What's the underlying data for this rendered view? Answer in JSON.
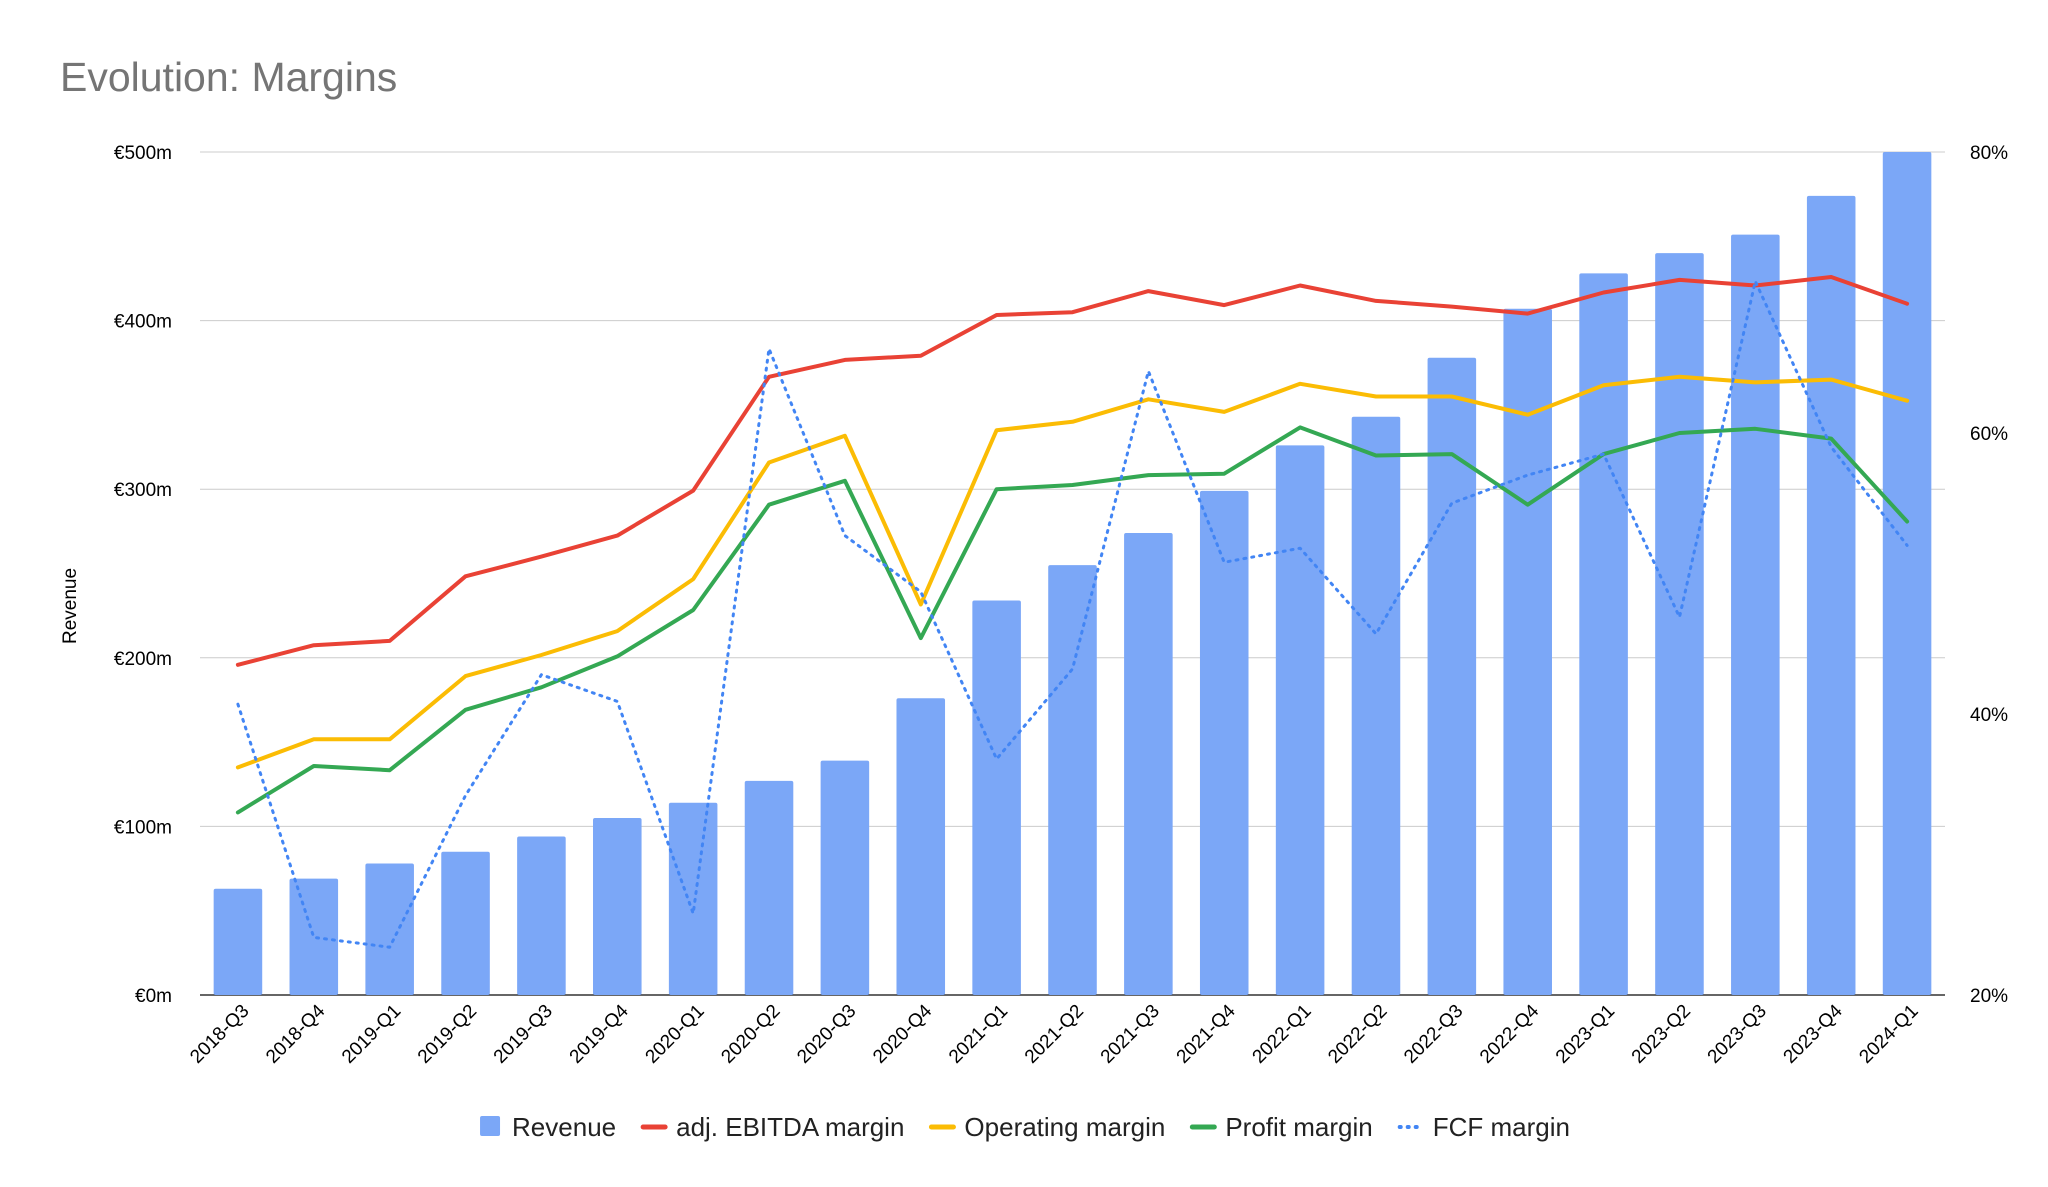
{
  "chart_data": {
    "type": "bar",
    "title": "Evolution: Margins",
    "ylabel": "Revenue",
    "y2label": "",
    "ylim": [
      0,
      500
    ],
    "y2lim": [
      20,
      80
    ],
    "y_ticks": [
      "€0m",
      "€100m",
      "€200m",
      "€300m",
      "€400m",
      "€500m"
    ],
    "y_tick_values": [
      0,
      100,
      200,
      300,
      400,
      500
    ],
    "y2_ticks": [
      "20%",
      "40%",
      "60%",
      "80%"
    ],
    "y2_tick_values": [
      20,
      40,
      60,
      80
    ],
    "grid": true,
    "legend_position": "bottom",
    "categories": [
      "2018-Q3",
      "2018-Q4",
      "2019-Q1",
      "2019-Q2",
      "2019-Q3",
      "2019-Q4",
      "2020-Q1",
      "2020-Q2",
      "2020-Q3",
      "2020-Q4",
      "2021-Q1",
      "2021-Q2",
      "2021-Q3",
      "2021-Q4",
      "2022-Q1",
      "2022-Q2",
      "2022-Q3",
      "2022-Q4",
      "2023-Q1",
      "2023-Q2",
      "2023-Q3",
      "2023-Q4",
      "2024-Q1"
    ],
    "series": [
      {
        "name": "Revenue",
        "kind": "bar",
        "axis": "left",
        "color": "#7BA7F7",
        "values": [
          63,
          69,
          78,
          85,
          94,
          105,
          114,
          127,
          139,
          176,
          234,
          255,
          274,
          299,
          326,
          343,
          378,
          407,
          428,
          440,
          451,
          474,
          500
        ]
      },
      {
        "name": "adj. EBITDA margin",
        "kind": "line",
        "axis": "right",
        "color": "#E94235",
        "dash": "solid",
        "values": [
          43.5,
          44.9,
          45.2,
          49.8,
          51.2,
          52.7,
          55.9,
          64.0,
          65.2,
          65.5,
          68.4,
          68.6,
          70.1,
          69.1,
          70.5,
          69.4,
          69.0,
          68.5,
          70.0,
          70.9,
          70.5,
          71.1,
          69.2
        ]
      },
      {
        "name": "Operating margin",
        "kind": "line",
        "axis": "right",
        "color": "#FBBC04",
        "dash": "solid",
        "values": [
          36.2,
          38.2,
          38.2,
          42.7,
          44.2,
          45.9,
          49.6,
          57.9,
          59.8,
          47.8,
          60.2,
          60.8,
          62.4,
          61.5,
          63.5,
          62.6,
          62.6,
          61.3,
          63.4,
          64.0,
          63.6,
          63.8,
          62.3
        ]
      },
      {
        "name": "Profit margin",
        "kind": "line",
        "axis": "right",
        "color": "#34A853",
        "dash": "solid",
        "values": [
          33.0,
          36.3,
          36.0,
          40.3,
          41.9,
          44.1,
          47.4,
          54.9,
          56.6,
          45.4,
          56.0,
          56.3,
          57.0,
          57.1,
          60.4,
          58.4,
          58.5,
          54.9,
          58.5,
          60.0,
          60.3,
          59.6,
          53.7
        ]
      },
      {
        "name": "FCF margin",
        "kind": "line",
        "axis": "right",
        "color": "#4285F4",
        "dash": "dotted",
        "values": [
          40.7,
          24.1,
          23.4,
          34.2,
          42.8,
          40.9,
          25.8,
          66.0,
          52.7,
          48.7,
          36.8,
          43.2,
          64.4,
          50.8,
          51.8,
          45.7,
          55.0,
          57.0,
          58.5,
          46.9,
          70.8,
          59.0,
          52.0
        ]
      }
    ]
  }
}
